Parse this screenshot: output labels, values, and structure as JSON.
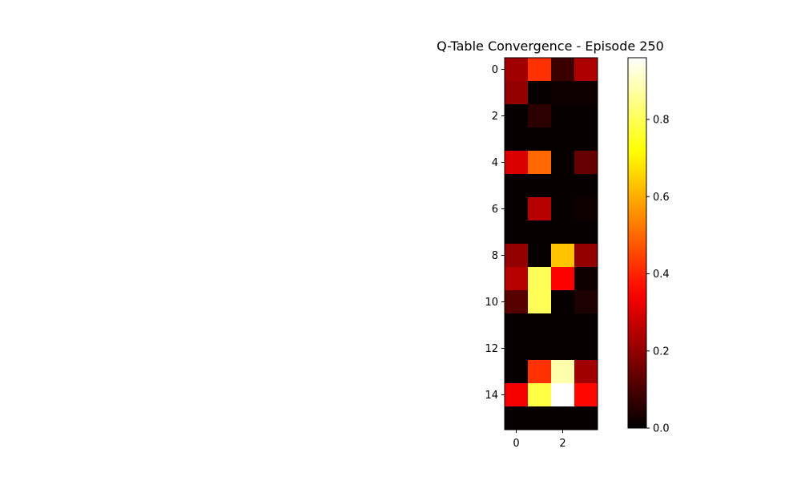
{
  "chart_data": {
    "type": "heatmap",
    "title": "Q-Table Convergence - Episode 250",
    "xlabel": "",
    "ylabel": "",
    "colormap": "hot",
    "rows": 16,
    "cols": 4,
    "x_ticks": [
      "0",
      "2"
    ],
    "y_ticks": [
      "0",
      "2",
      "4",
      "6",
      "8",
      "10",
      "12",
      "14"
    ],
    "colorbar": {
      "vmin": 0.0,
      "vmax": 0.96,
      "ticks": [
        "0.0",
        "0.2",
        "0.4",
        "0.6",
        "0.8"
      ]
    },
    "values": [
      [
        0.22,
        0.42,
        0.08,
        0.24
      ],
      [
        0.2,
        0.01,
        0.02,
        0.02
      ],
      [
        0.01,
        0.06,
        0.01,
        0.01
      ],
      [
        0.01,
        0.01,
        0.01,
        0.01
      ],
      [
        0.3,
        0.5,
        0.01,
        0.14
      ],
      [
        0.01,
        0.01,
        0.01,
        0.01
      ],
      [
        0.01,
        0.25,
        0.01,
        0.02
      ],
      [
        0.01,
        0.01,
        0.01,
        0.01
      ],
      [
        0.2,
        0.01,
        0.63,
        0.2
      ],
      [
        0.25,
        0.8,
        0.35,
        0.02
      ],
      [
        0.12,
        0.8,
        0.01,
        0.04
      ],
      [
        0.01,
        0.01,
        0.01,
        0.01
      ],
      [
        0.01,
        0.01,
        0.01,
        0.01
      ],
      [
        0.01,
        0.42,
        0.88,
        0.22
      ],
      [
        0.34,
        0.78,
        0.96,
        0.36
      ],
      [
        0.01,
        0.01,
        0.01,
        0.01
      ]
    ]
  }
}
